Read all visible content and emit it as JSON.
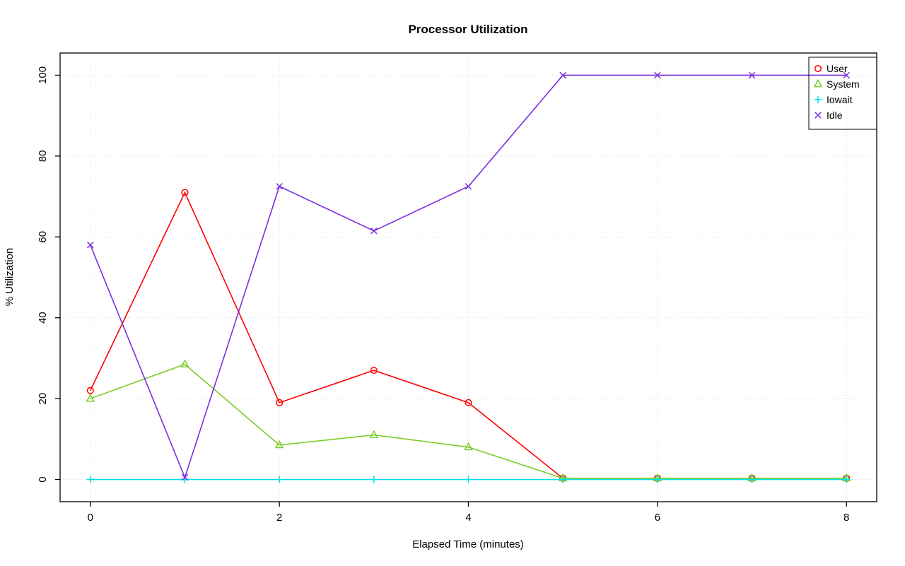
{
  "chart_data": {
    "type": "line",
    "title": "Processor Utilization",
    "xlabel": "Elapsed Time (minutes)",
    "ylabel": "% Utilization",
    "xlim": [
      0,
      8
    ],
    "ylim": [
      0,
      100
    ],
    "xticks": [
      0,
      2,
      4,
      6,
      8
    ],
    "yticks": [
      0,
      20,
      40,
      60,
      80,
      100
    ],
    "grid": true,
    "legend_position": "top-right",
    "x": [
      0,
      1,
      2,
      3,
      4,
      5,
      6,
      7,
      8
    ],
    "series": [
      {
        "name": "User",
        "marker": "circle",
        "color": "#ff0000",
        "values": [
          22,
          71,
          19,
          27,
          19,
          0.3,
          0.3,
          0.3,
          0.3
        ]
      },
      {
        "name": "System",
        "marker": "triangle",
        "color": "#7ccd2a",
        "values": [
          20,
          28.5,
          8.5,
          11,
          8,
          0.3,
          0.3,
          0.3,
          0.3
        ]
      },
      {
        "name": "Iowait",
        "marker": "plus",
        "color": "#00e1e1",
        "values": [
          0,
          0,
          0,
          0,
          0,
          0,
          0,
          0,
          0
        ]
      },
      {
        "name": "Idle",
        "marker": "x",
        "color": "#7b2fe0",
        "values": [
          58,
          0.5,
          72.5,
          61.5,
          72.5,
          100,
          100,
          100,
          100
        ]
      }
    ],
    "colors": {
      "grid": "#d9d9d9",
      "axis": "#000000",
      "background": "#ffffff"
    }
  }
}
